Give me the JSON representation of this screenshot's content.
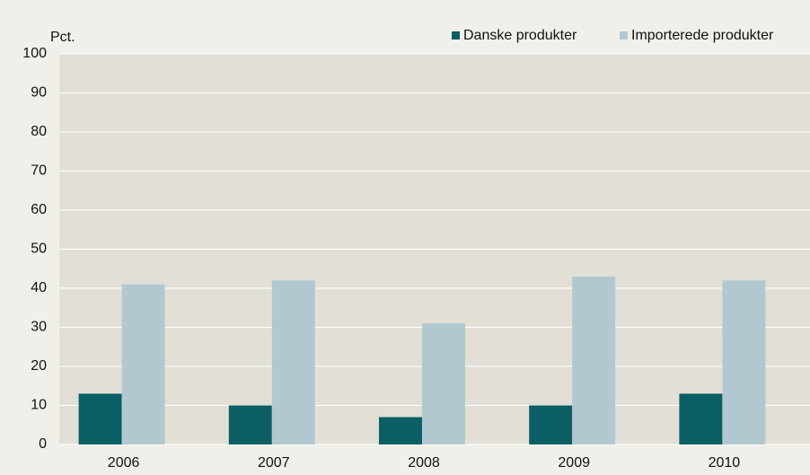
{
  "chart_data": {
    "type": "bar",
    "y_label": "Pct.",
    "categories": [
      "2006",
      "2007",
      "2008",
      "2009",
      "2010"
    ],
    "series": [
      {
        "name": "Danske produkter",
        "color": "#0b5e63",
        "values": [
          13,
          10,
          7,
          10,
          13
        ]
      },
      {
        "name": "Importerede produkter",
        "color": "#b2c8d1",
        "values": [
          41,
          42,
          31,
          43,
          42
        ]
      }
    ],
    "ylim": [
      0,
      100
    ],
    "yticks": [
      0,
      10,
      20,
      30,
      40,
      50,
      60,
      70,
      80,
      90,
      100
    ],
    "grid": true,
    "legend": "top-right"
  }
}
